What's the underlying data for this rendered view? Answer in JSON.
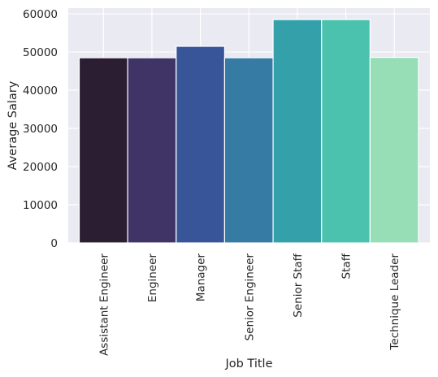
{
  "chart_data": {
    "type": "bar",
    "title": "",
    "xlabel": "Job Title",
    "ylabel": "Average Salary",
    "categories": [
      "Assistant Engineer",
      "Engineer",
      "Manager",
      "Senior Engineer",
      "Senior Staff",
      "Staff",
      "Technique Leader"
    ],
    "values": [
      48500,
      48500,
      51500,
      48500,
      58500,
      58500,
      48600
    ],
    "colors": [
      "#2b1e33",
      "#403466",
      "#39559a",
      "#357ba3",
      "#34a0aa",
      "#4ac2ad",
      "#97ddb6"
    ],
    "ylim": [
      0,
      61500
    ],
    "yticks": [
      0,
      10000,
      20000,
      30000,
      40000,
      50000,
      60000
    ],
    "grid": true,
    "background": "#eaeaf2",
    "grid_color": "#ffffff"
  }
}
